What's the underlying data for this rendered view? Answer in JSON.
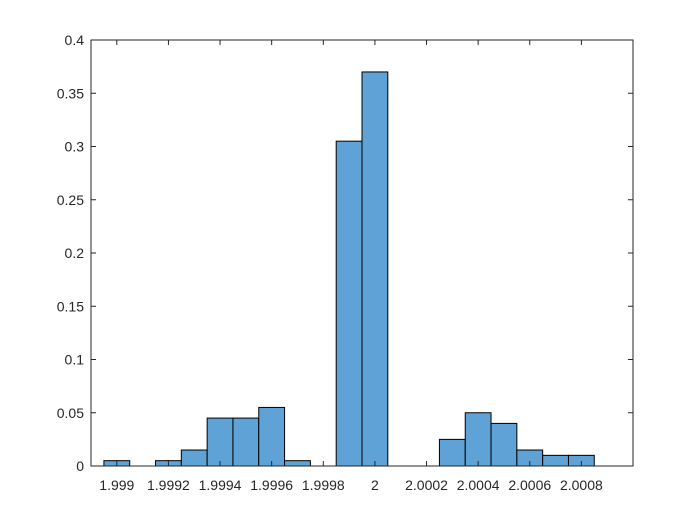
{
  "chart_data": {
    "type": "bar",
    "subtype": "histogram",
    "bar_color": "#5fa2d5",
    "edge_color": "#000000",
    "xlim": [
      1.9989,
      2.001
    ],
    "ylim": [
      0,
      0.4
    ],
    "bin_width": 0.0001,
    "x_ticks": [
      {
        "value": 1.999,
        "label": "1.999"
      },
      {
        "value": 1.9992,
        "label": "1.9992"
      },
      {
        "value": 1.9994,
        "label": "1.9994"
      },
      {
        "value": 1.9996,
        "label": "1.9996"
      },
      {
        "value": 1.9998,
        "label": "1.9998"
      },
      {
        "value": 2.0,
        "label": "2"
      },
      {
        "value": 2.0002,
        "label": "2.0002"
      },
      {
        "value": 2.0004,
        "label": "2.0004"
      },
      {
        "value": 2.0006,
        "label": "2.0006"
      },
      {
        "value": 2.0008,
        "label": "2.0008"
      }
    ],
    "y_ticks": [
      {
        "value": 0,
        "label": "0"
      },
      {
        "value": 0.05,
        "label": "0.05"
      },
      {
        "value": 0.1,
        "label": "0.1"
      },
      {
        "value": 0.15,
        "label": "0.15"
      },
      {
        "value": 0.2,
        "label": "0.2"
      },
      {
        "value": 0.25,
        "label": "0.25"
      },
      {
        "value": 0.3,
        "label": "0.3"
      },
      {
        "value": 0.35,
        "label": "0.35"
      },
      {
        "value": 0.4,
        "label": "0.4"
      }
    ],
    "bins": [
      {
        "x0": 1.99895,
        "x1": 1.99905,
        "value": 0.005
      },
      {
        "x0": 1.99905,
        "x1": 1.99915,
        "value": 0.0
      },
      {
        "x0": 1.99915,
        "x1": 1.99925,
        "value": 0.005
      },
      {
        "x0": 1.99925,
        "x1": 1.99935,
        "value": 0.015
      },
      {
        "x0": 1.99935,
        "x1": 1.99945,
        "value": 0.045
      },
      {
        "x0": 1.99945,
        "x1": 1.99955,
        "value": 0.045
      },
      {
        "x0": 1.99955,
        "x1": 1.99965,
        "value": 0.055
      },
      {
        "x0": 1.99965,
        "x1": 1.99975,
        "value": 0.005
      },
      {
        "x0": 1.99975,
        "x1": 1.99985,
        "value": 0.0
      },
      {
        "x0": 1.99985,
        "x1": 1.99995,
        "value": 0.305
      },
      {
        "x0": 1.99995,
        "x1": 2.00005,
        "value": 0.37
      },
      {
        "x0": 2.00005,
        "x1": 2.00015,
        "value": 0.0
      },
      {
        "x0": 2.00015,
        "x1": 2.00025,
        "value": 0.0
      },
      {
        "x0": 2.00025,
        "x1": 2.00035,
        "value": 0.025
      },
      {
        "x0": 2.00035,
        "x1": 2.00045,
        "value": 0.05
      },
      {
        "x0": 2.00045,
        "x1": 2.00055,
        "value": 0.04
      },
      {
        "x0": 2.00055,
        "x1": 2.00065,
        "value": 0.015
      },
      {
        "x0": 2.00065,
        "x1": 2.00075,
        "value": 0.01
      },
      {
        "x0": 2.00075,
        "x1": 2.00085,
        "value": 0.01
      }
    ],
    "grid": false,
    "box": true
  }
}
